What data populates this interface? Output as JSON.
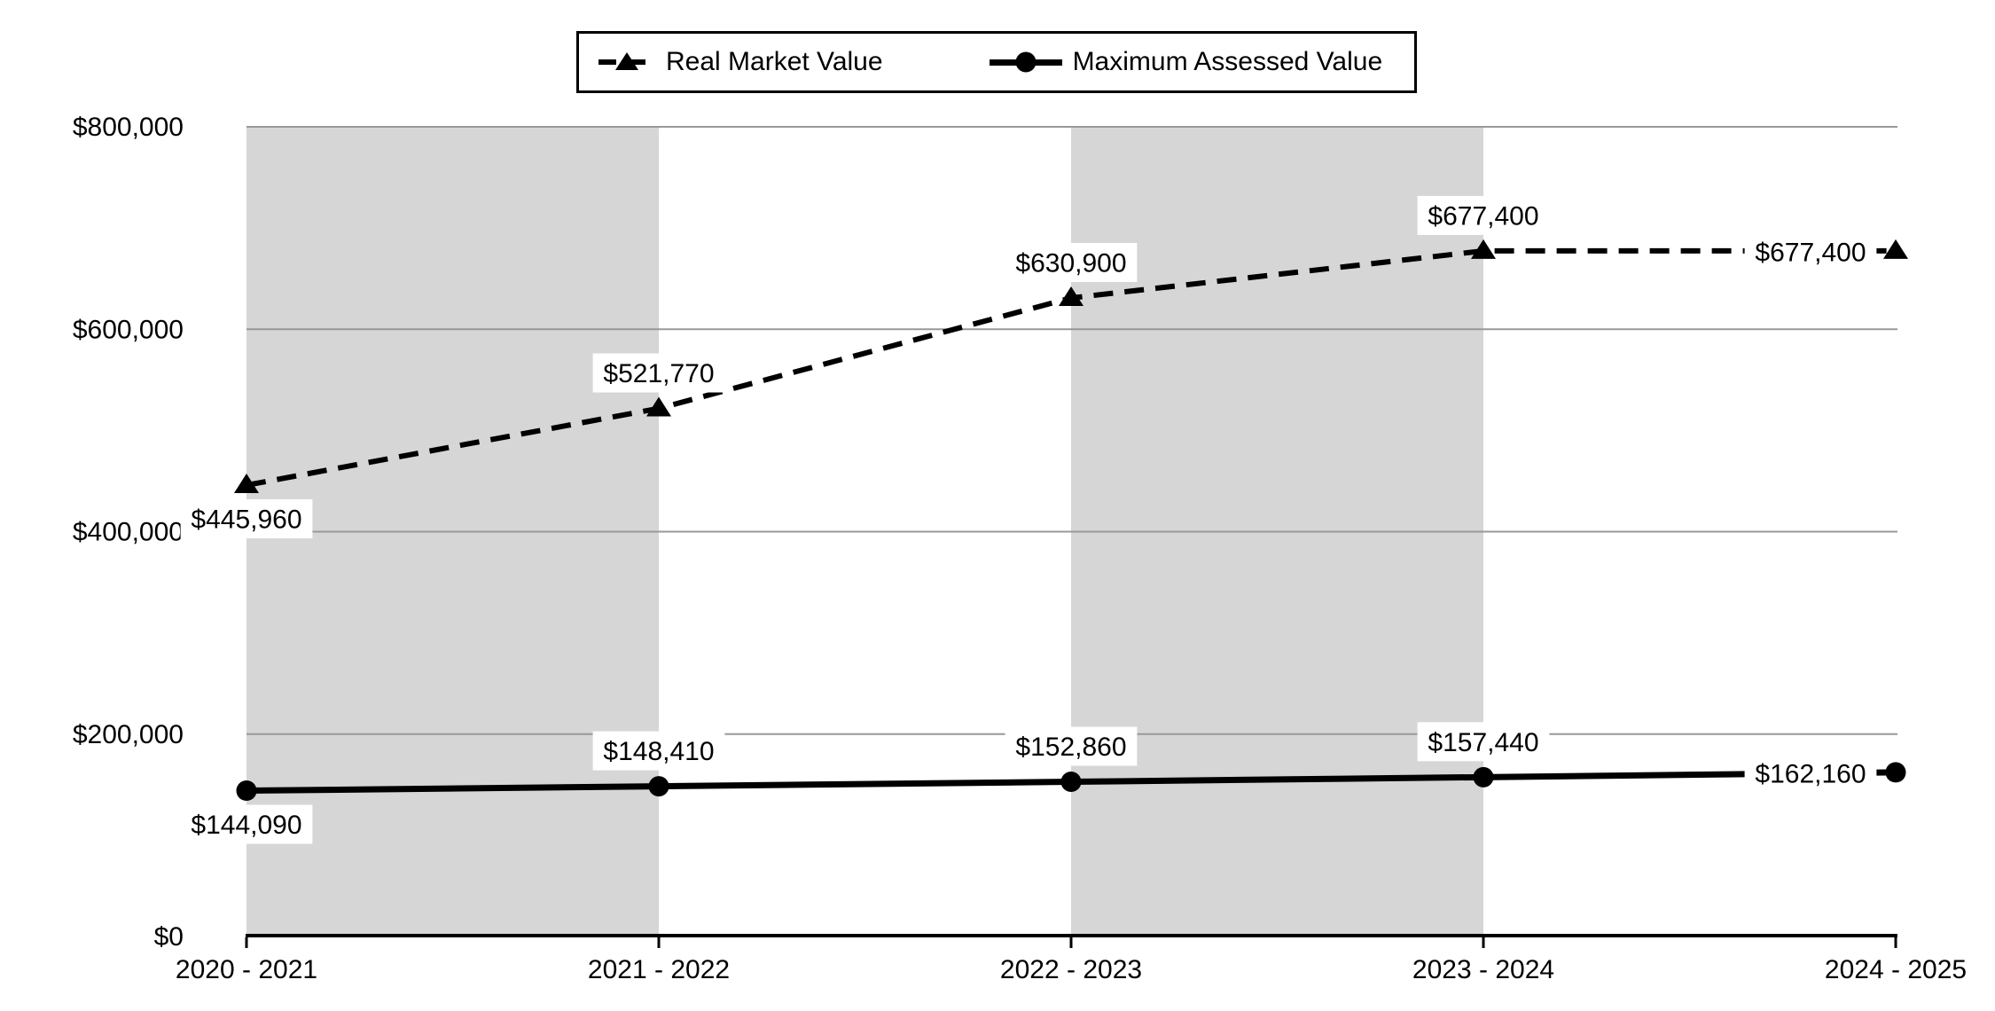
{
  "chart_data": {
    "type": "line",
    "categories": [
      "2020 - 2021",
      "2021 - 2022",
      "2022 - 2023",
      "2023 - 2024",
      "2024 - 2025"
    ],
    "series": [
      {
        "name": "Real Market Value",
        "values": [
          445960,
          521770,
          630900,
          677400,
          677400
        ],
        "labels": [
          "$445,960",
          "$521,770",
          "$630,900",
          "$677,400",
          "$677,400"
        ],
        "line_style": "dashed",
        "marker": "triangle",
        "label_positions": [
          "below",
          "above",
          "above",
          "above",
          "left"
        ]
      },
      {
        "name": "Maximum Assessed Value",
        "values": [
          144090,
          148410,
          152860,
          157440,
          162160
        ],
        "labels": [
          "$144,090",
          "$148,410",
          "$152,860",
          "$157,440",
          "$162,160"
        ],
        "line_style": "solid",
        "marker": "circle",
        "label_positions": [
          "below",
          "above",
          "above",
          "above",
          "left"
        ]
      }
    ],
    "y_ticks": [
      {
        "value": 0,
        "label": "$0"
      },
      {
        "value": 200000,
        "label": "$200,000"
      },
      {
        "value": 400000,
        "label": "$400,000"
      },
      {
        "value": 600000,
        "label": "$600,000"
      },
      {
        "value": 800000,
        "label": "$800,000"
      }
    ],
    "ylim": [
      0,
      800000
    ],
    "grid": "horizontal",
    "legend_position": "top",
    "shaded_intervals": [
      0,
      2
    ],
    "colors": {
      "series": "#000000",
      "band": "#d6d6d6",
      "gridline": "#999999",
      "axis": "#000000",
      "text": "#000000",
      "label_background": "#ffffff",
      "background": "#ffffff"
    }
  }
}
